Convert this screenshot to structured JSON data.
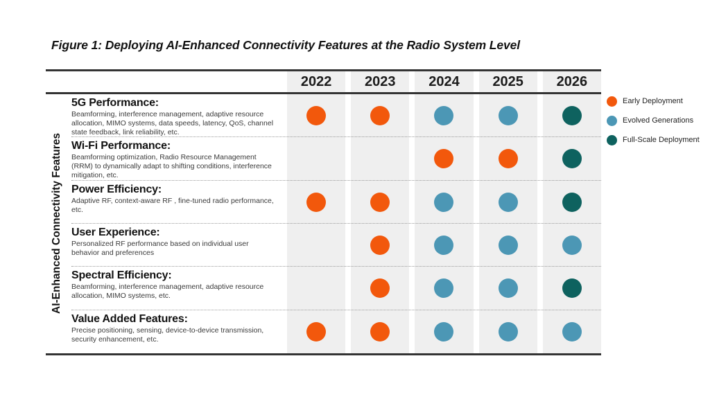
{
  "title": "Figure 1: Deploying AI-Enhanced Connectivity Features at the Radio System Level",
  "y_axis_label": "AI-Enhanced Connectivity Features",
  "years": [
    "2022",
    "2023",
    "2024",
    "2025",
    "2026"
  ],
  "legend": [
    {
      "key": "early",
      "label": "Early Deployment",
      "color": "#F2580C"
    },
    {
      "key": "evolved",
      "label": "Evolved Generations",
      "color": "#4C97B5"
    },
    {
      "key": "full",
      "label": "Full-Scale Deployment",
      "color": "#0E625F"
    }
  ],
  "rows": [
    {
      "title": "5G Performance:",
      "description": "Beamforming, interference management, adaptive resource allocation, MIMO systems, data speeds, latency, QoS, channel state feedback, link reliability, etc.",
      "cells": [
        "early",
        "early",
        "evolved",
        "evolved",
        "full"
      ]
    },
    {
      "title": "Wi-Fi Performance:",
      "description": "Beamforming optimization, Radio Resource Management (RRM) to dynamically adapt to shifting conditions, interference mitigation, etc.",
      "cells": [
        null,
        null,
        "early",
        "early",
        "full"
      ]
    },
    {
      "title": "Power Efficiency:",
      "description": "Adaptive RF, context-aware RF , fine-tuned radio performance, etc.",
      "cells": [
        "early",
        "early",
        "evolved",
        "evolved",
        "full"
      ]
    },
    {
      "title": "User Experience:",
      "description": "Personalized RF performance based on individual user behavior and preferences",
      "cells": [
        null,
        "early",
        "evolved",
        "evolved",
        "evolved"
      ]
    },
    {
      "title": "Spectral Efficiency:",
      "description": "Beamforming, interference management, adaptive resource allocation, MIMO systems, etc.",
      "cells": [
        null,
        "early",
        "evolved",
        "evolved",
        "full"
      ]
    },
    {
      "title": "Value Added Features:",
      "description": "Precise positioning, sensing, device-to-device transmission, security enhancement,  etc.",
      "cells": [
        "early",
        "early",
        "evolved",
        "evolved",
        "evolved"
      ]
    }
  ],
  "chart_data": {
    "type": "table",
    "title": "Figure 1: Deploying AI-Enhanced Connectivity Features at the Radio System Level",
    "columns": [
      "2022",
      "2023",
      "2024",
      "2025",
      "2026"
    ],
    "ylabel": "AI-Enhanced Connectivity Features",
    "legend": [
      "Early Deployment",
      "Evolved Generations",
      "Full-Scale Deployment"
    ],
    "legend_position": "right",
    "rows": [
      {
        "feature": "5G Performance",
        "values": [
          "Early Deployment",
          "Early Deployment",
          "Evolved Generations",
          "Evolved Generations",
          "Full-Scale Deployment"
        ]
      },
      {
        "feature": "Wi-Fi Performance",
        "values": [
          null,
          null,
          "Early Deployment",
          "Early Deployment",
          "Full-Scale Deployment"
        ]
      },
      {
        "feature": "Power Efficiency",
        "values": [
          "Early Deployment",
          "Early Deployment",
          "Evolved Generations",
          "Evolved Generations",
          "Full-Scale Deployment"
        ]
      },
      {
        "feature": "User Experience",
        "values": [
          null,
          "Early Deployment",
          "Evolved Generations",
          "Evolved Generations",
          "Evolved Generations"
        ]
      },
      {
        "feature": "Spectral Efficiency",
        "values": [
          null,
          "Early Deployment",
          "Evolved Generations",
          "Evolved Generations",
          "Full-Scale Deployment"
        ]
      },
      {
        "feature": "Value Added Features",
        "values": [
          "Early Deployment",
          "Early Deployment",
          "Evolved Generations",
          "Evolved Generations",
          "Evolved Generations"
        ]
      }
    ]
  }
}
